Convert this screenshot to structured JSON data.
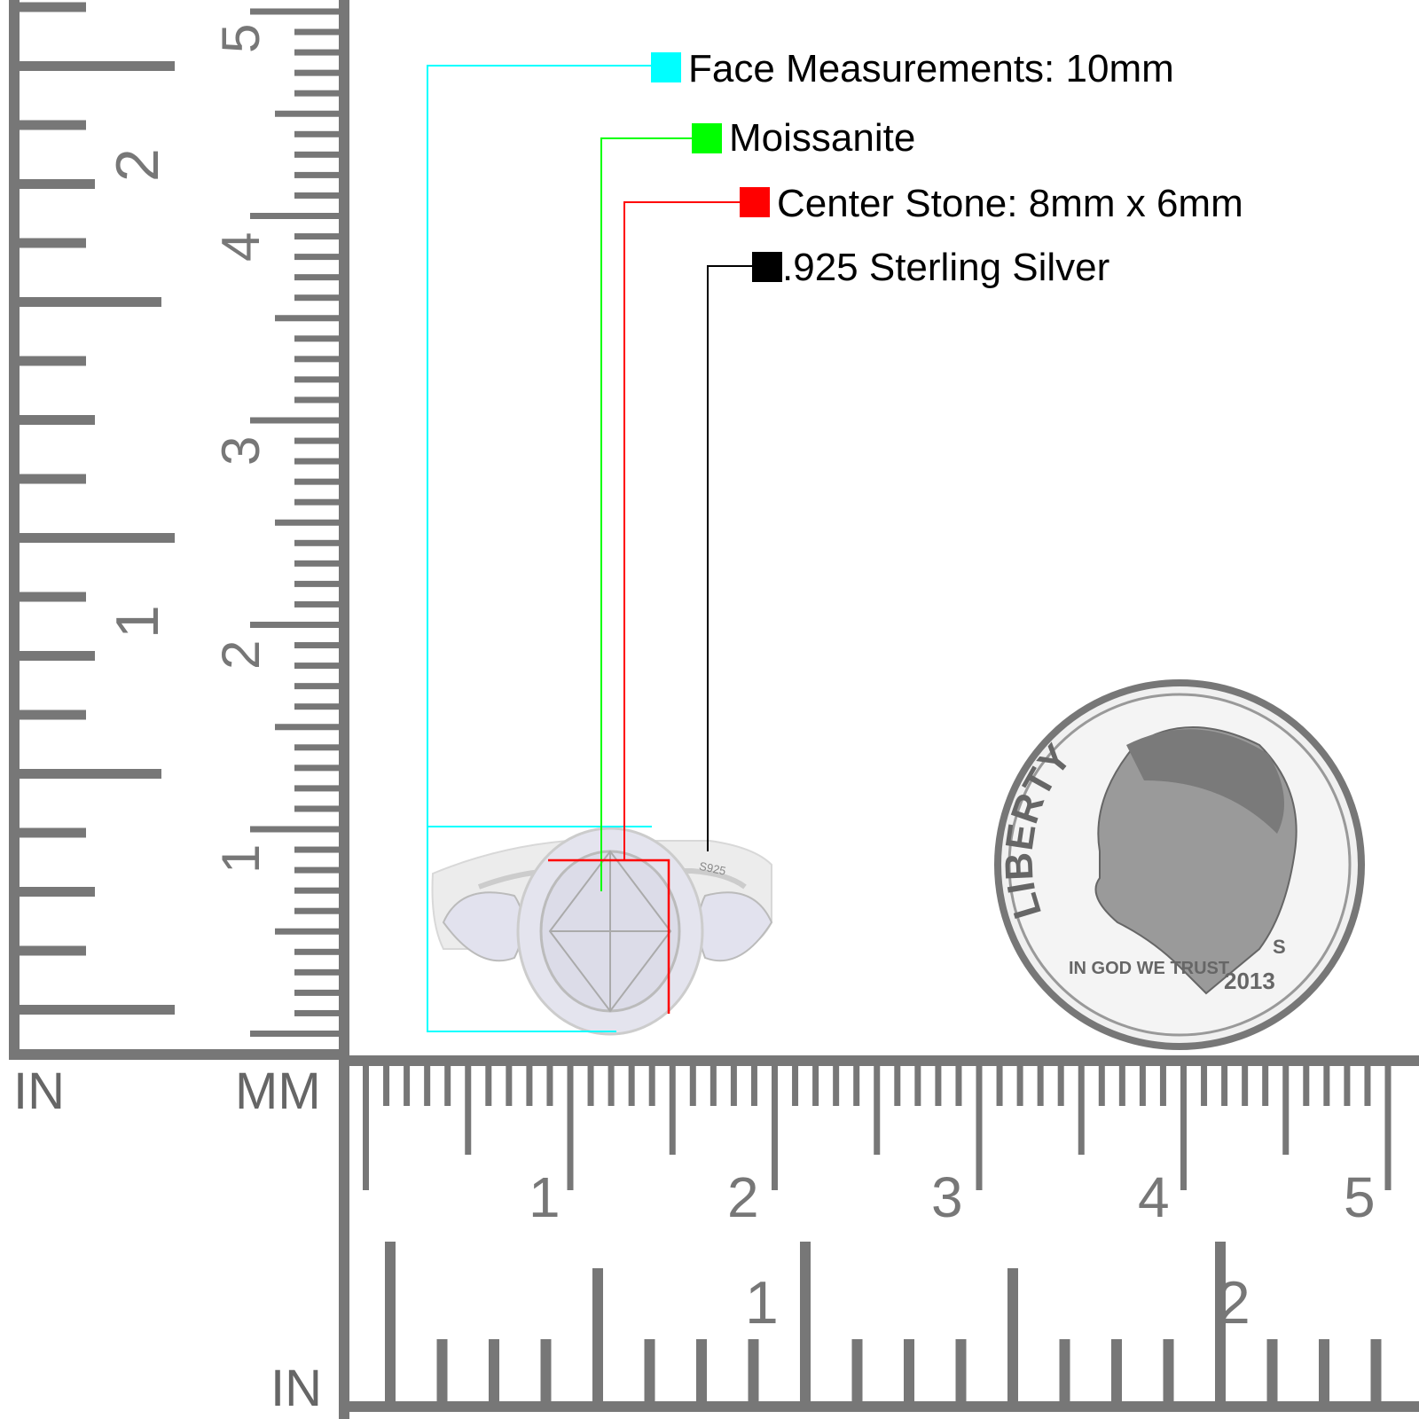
{
  "legend": [
    {
      "label": "Face Measurements: 10mm",
      "color": "#00ffff"
    },
    {
      "label": "Moissanite",
      "color": "#00ff00"
    },
    {
      "label": "Center Stone: 8mm x 6mm",
      "color": "#ff0000"
    },
    {
      "label": ".925 Sterling Silver",
      "color": "#000000"
    }
  ],
  "ring": {
    "stamp": "S925"
  },
  "coin": {
    "lettering": [
      "LIBERTY",
      "IN GOD WE TRUST",
      "2013",
      "S"
    ]
  },
  "vertical_ruler": {
    "inch_labels": [
      "1",
      "2"
    ],
    "mm_labels": [
      "1",
      "2",
      "3",
      "4",
      "5"
    ],
    "unit_in": "IN",
    "unit_mm": "MM"
  },
  "horizontal_ruler": {
    "mm_labels": [
      "1",
      "2",
      "3",
      "4",
      "5"
    ],
    "inch_labels": [
      "1",
      "2"
    ],
    "unit_in": "IN"
  },
  "ruler_color": "#777777"
}
